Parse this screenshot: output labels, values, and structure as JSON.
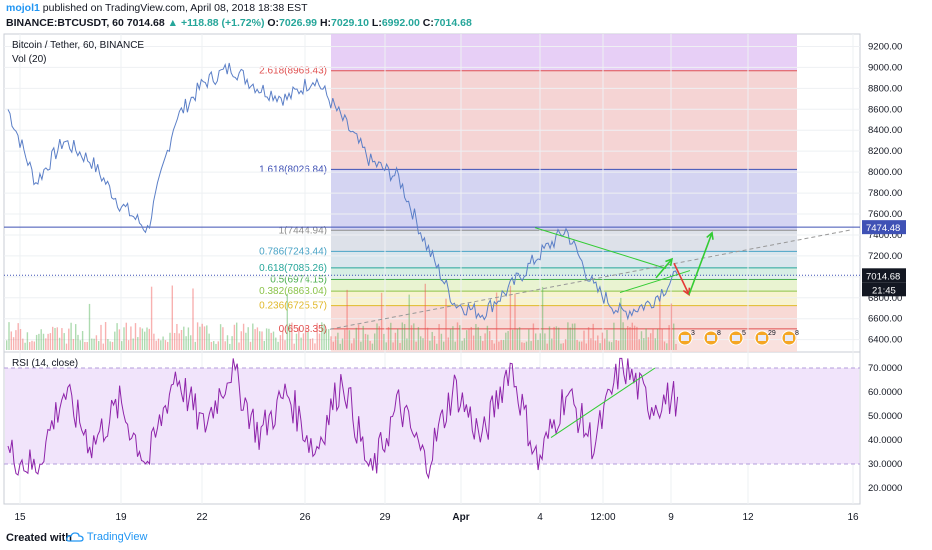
{
  "header": {
    "author": "mojol1",
    "published": " published on TradingView.com, April 08, 2018 18:38 EST",
    "symbol": "BINANCE:BTCUSDT, 60",
    "last": "7014.68",
    "change": "▲ +118.88 (+1.72%)",
    "o_label": "O:",
    "o_val": "7026.99",
    "h_label": "H:",
    "h_val": "7029.10",
    "l_label": "L:",
    "l_val": "6992.00",
    "c_label": "C:",
    "c_val": "7014.68"
  },
  "legend": {
    "title": "Bitcoin / Tether, 60, BINANCE",
    "volume": "Vol (20)",
    "rsi": "RSI (14, close)"
  },
  "footer": {
    "created_with": "Created with",
    "brand": "TradingView"
  },
  "colors": {
    "price_line": "#5b7fc7",
    "rsi_line": "#8e24aa",
    "fib_purple": "#a569d6",
    "fib_red": "#e57373",
    "fib_blue": "#3f51b5",
    "green": "#33cc33",
    "red_arrow": "#e53935",
    "vol_up": "#4caf50",
    "vol_down": "#ef5350"
  },
  "chart_data": [
    {
      "type": "line",
      "name": "price",
      "title": "Bitcoin / Tether, 60, BINANCE",
      "y_axis_ticks": [
        "9200.00",
        "9000.00",
        "8800.00",
        "8600.00",
        "8400.00",
        "8200.00",
        "8000.00",
        "7800.00",
        "7600.00",
        "7400.00",
        "7200.00",
        "7000.00",
        "6800.00",
        "6600.00",
        "6400.00"
      ],
      "ylim": [
        6330,
        9300
      ],
      "x_axis_ticks": [
        "15",
        "19",
        "22",
        "26",
        "29",
        "Apr",
        "4",
        "12:00",
        "9",
        "12",
        "16"
      ],
      "price_labels": [
        {
          "value": "7474.48",
          "style": "blue"
        },
        {
          "value": "7014.68",
          "style": "dark"
        },
        {
          "value": "21:45",
          "style": "dark"
        }
      ],
      "series": {
        "x": [
          0,
          3,
          6,
          9,
          12,
          15,
          18,
          21,
          24,
          27,
          30,
          33,
          36,
          39,
          42,
          45,
          48,
          51,
          54,
          57,
          60,
          63,
          66,
          69,
          72
        ],
        "values": [
          8600,
          7900,
          8300,
          8100,
          7700,
          7450,
          8500,
          8850,
          9000,
          8800,
          8700,
          8900,
          8500,
          8100,
          7950,
          7300,
          6750,
          6650,
          6900,
          7200,
          7450,
          6900,
          6650,
          6750,
          7015
        ]
      },
      "fibonacci": [
        {
          "label": "2.618(8968.43)",
          "value": 8968.43
        },
        {
          "label": "1.618(8026.84)",
          "value": 8026.84
        },
        {
          "label": "1(7444.94)",
          "value": 7444.94
        },
        {
          "label": "0.786(7243.44)",
          "value": 7243.44
        },
        {
          "label": "0.618(7085.26)",
          "value": 7085.26
        },
        {
          "label": "0.5(6974.15)",
          "value": 6974.15
        },
        {
          "label": "0.382(6863.04)",
          "value": 6863.04
        },
        {
          "label": "0.236(6725.57)",
          "value": 6725.57
        },
        {
          "label": "0(6503.35)",
          "value": 6503.35
        }
      ],
      "horizontal_line": 7474.48,
      "event_badges": [
        "3",
        "8",
        "5",
        "29",
        "8"
      ]
    },
    {
      "type": "line",
      "name": "rsi",
      "title": "RSI (14, close)",
      "y_axis_ticks": [
        "70.0000",
        "60.0000",
        "50.0000",
        "40.0000",
        "30.0000",
        "20.0000"
      ],
      "ylim": [
        15,
        75
      ],
      "band": [
        30,
        70
      ],
      "series": {
        "x": [
          0,
          3,
          6,
          9,
          12,
          15,
          18,
          21,
          24,
          27,
          30,
          33,
          36,
          39,
          42,
          45,
          48,
          51,
          54,
          57,
          60,
          63,
          66,
          69,
          72
        ],
        "values": [
          35,
          28,
          60,
          38,
          55,
          30,
          68,
          45,
          70,
          42,
          60,
          35,
          66,
          25,
          55,
          30,
          62,
          40,
          72,
          30,
          60,
          38,
          72,
          55,
          58
        ]
      }
    }
  ]
}
